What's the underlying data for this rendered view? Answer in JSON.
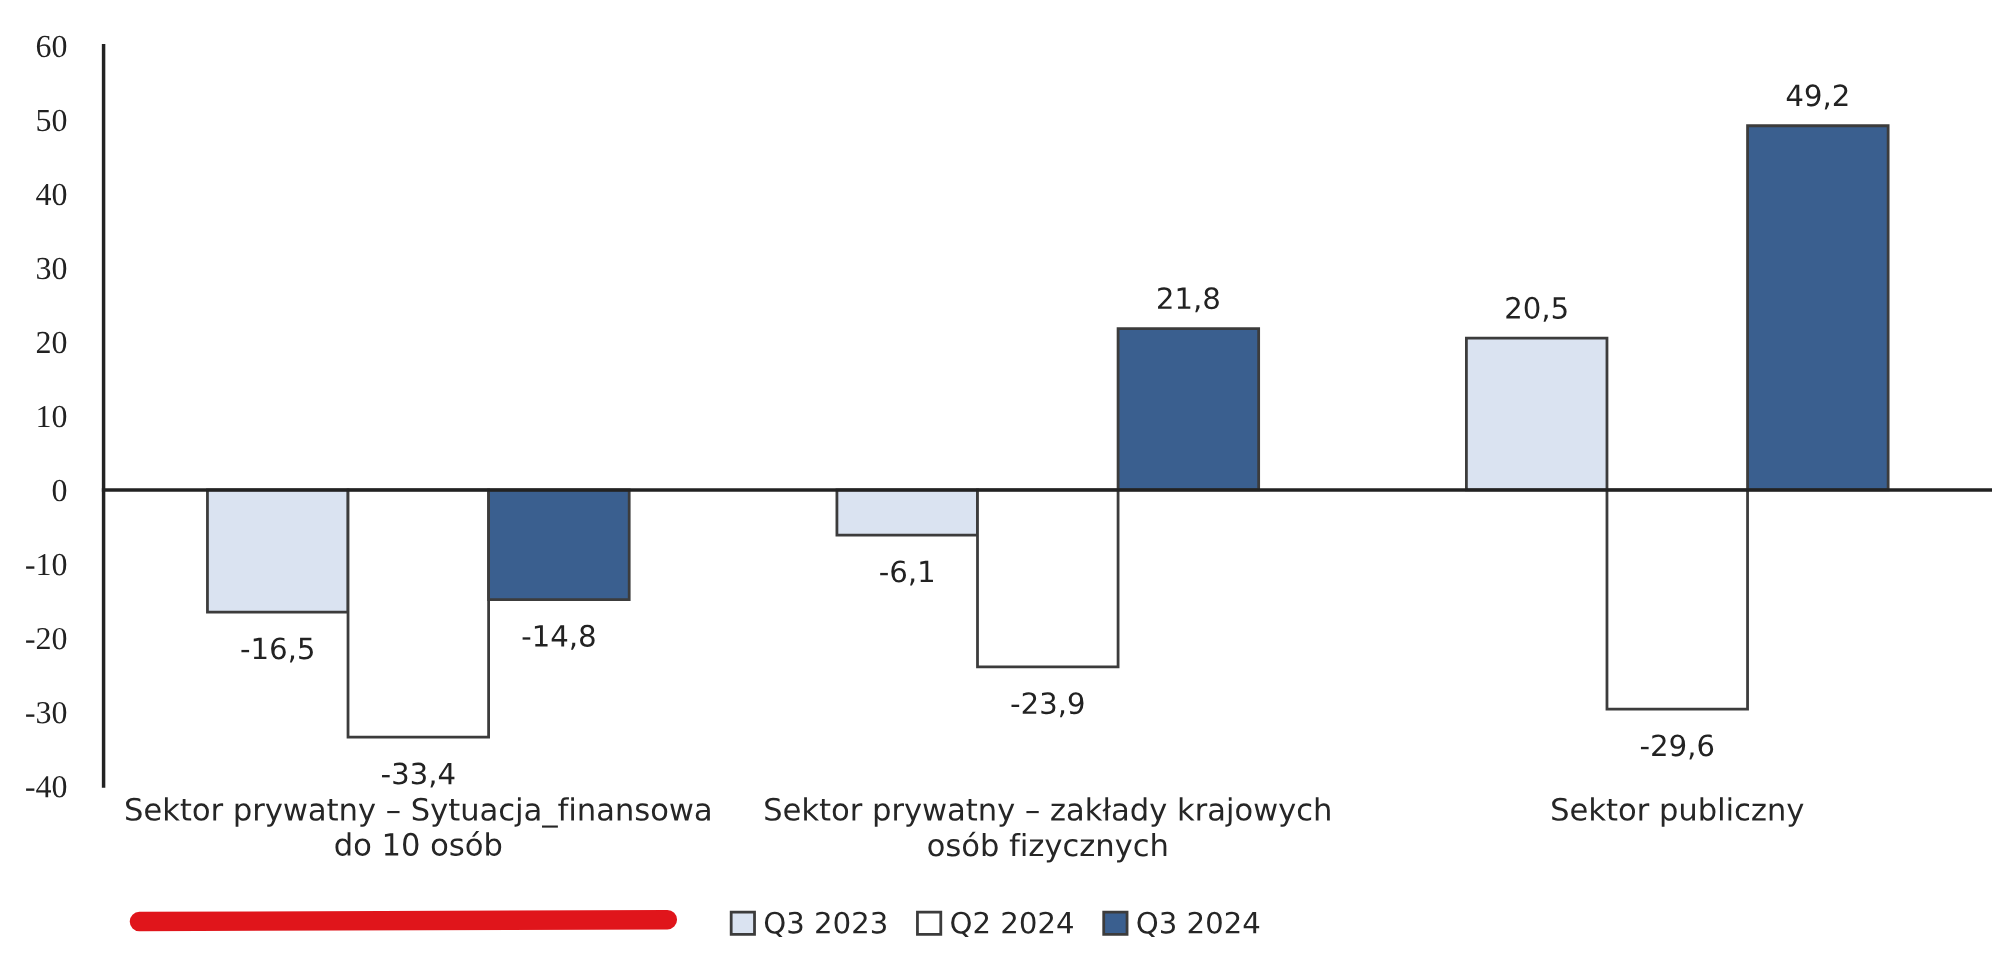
{
  "chart_data": {
    "type": "bar",
    "categories": [
      "Sektor prywatny – Sytuacja_finansowa\ndo 10 osób",
      "Sektor prywatny – zakłady krajowych\nosób fizycznych",
      "Sektor publiczny"
    ],
    "series": [
      {
        "name": "Q3 2023",
        "color": "#dae3f1",
        "values": [
          -16.5,
          -6.1,
          20.5
        ],
        "value_labels": [
          "-16,5",
          "-6,1",
          "20,5"
        ]
      },
      {
        "name": "Q2 2024",
        "color": "#ffffff",
        "values": [
          -33.4,
          -23.9,
          -29.6
        ],
        "value_labels": [
          "-33,4",
          "-23,9",
          "-29,6"
        ]
      },
      {
        "name": "Q3 2024",
        "color": "#3a5f8f",
        "values": [
          -14.8,
          21.8,
          49.2
        ],
        "value_labels": [
          "-14,8",
          "21,8",
          "49,2"
        ]
      }
    ],
    "ylim": [
      -40,
      60
    ],
    "yticks": [
      -40,
      -30,
      -20,
      -10,
      0,
      10,
      20,
      30,
      40,
      50,
      60
    ],
    "legend": "bottom"
  }
}
